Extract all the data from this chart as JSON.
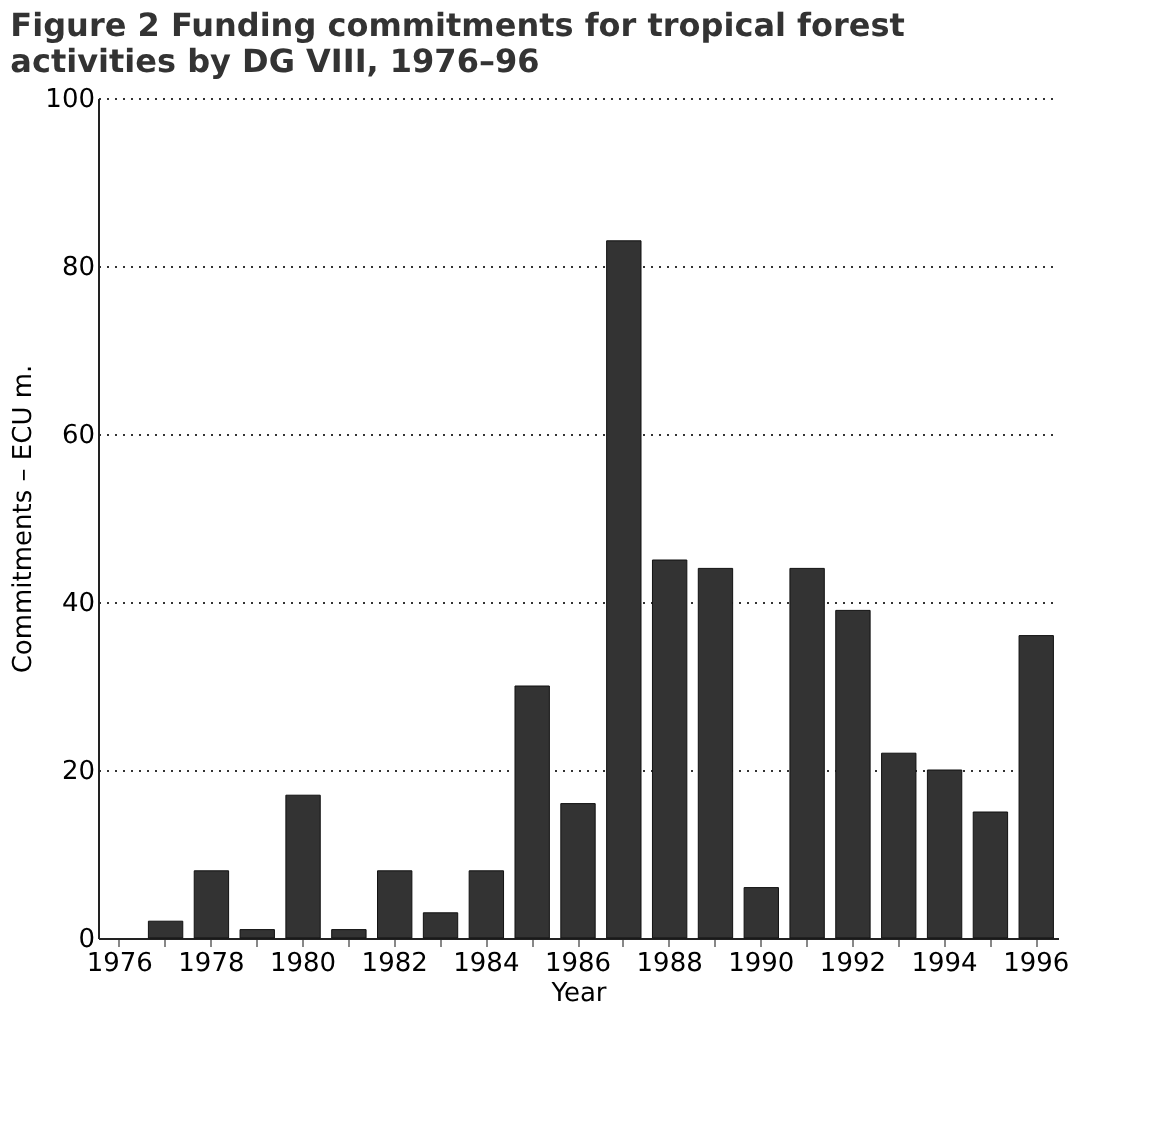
{
  "chart_data": {
    "type": "bar",
    "title": [
      "Figure 2    Funding commitments for tropical forest",
      "activities by DG VIII, 1976–96"
    ],
    "xlabel": "Year",
    "ylabel": "Commitments – ECU m.",
    "categories": [
      "1976",
      null,
      "1978",
      null,
      "1980",
      null,
      "1982",
      null,
      "1984",
      null,
      "1986",
      null,
      "1988",
      null,
      "1990",
      null,
      "1992",
      null,
      "1994",
      null,
      "1996"
    ],
    "values": [
      null,
      2,
      8,
      1,
      17,
      1,
      8,
      3,
      8,
      30,
      16,
      83,
      45,
      44,
      6,
      44,
      39,
      22,
      20,
      15,
      36
    ],
    "color": "#333333",
    "ylim": [
      0,
      100
    ],
    "yticks": [
      0,
      20,
      40,
      60,
      80,
      100
    ],
    "grid": "y",
    "line_style": "dotted"
  }
}
